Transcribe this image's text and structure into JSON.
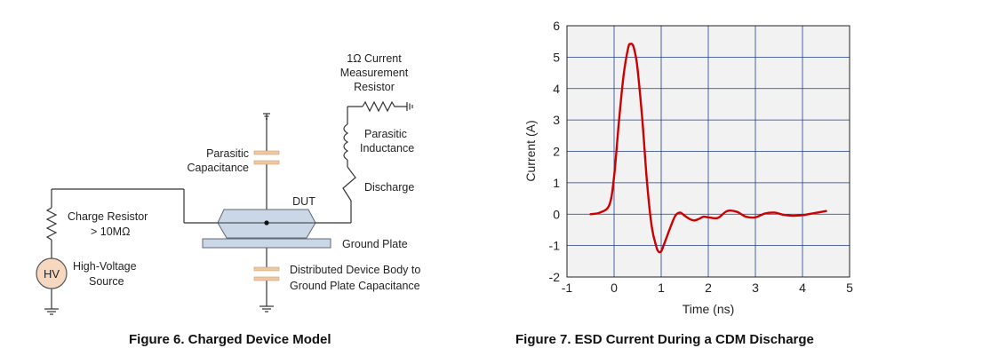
{
  "figure6": {
    "caption": "Figure 6. Charged Device Model",
    "labels": {
      "resistor_1": "1Ω Current",
      "resistor_2": "Measurement",
      "resistor_3": "Resistor",
      "inductance_1": "Parasitic",
      "inductance_2": "Inductance",
      "capacitance_1": "Parasitic",
      "capacitance_2": "Capacitance",
      "dut": "DUT",
      "discharge": "Discharge",
      "charge_resistor_1": "Charge Resistor",
      "charge_resistor_2": "> 10MΩ",
      "hv": "HV",
      "hv_source_1": "High-Voltage",
      "hv_source_2": "Source",
      "ground_plate": "Ground Plate",
      "distributed_1": "Distributed Device Body to",
      "distributed_2": "Ground Plate Capacitance"
    },
    "colors": {
      "capacitor_fill": "#f0c8a0",
      "dut_fill": "#c9d7e6",
      "ground_plate_fill": "#c9d7e6",
      "hv_fill": "#f6d8c0"
    }
  },
  "figure7": {
    "caption": "Figure 7. ESD Current During a CDM Discharge"
  },
  "chart_data": {
    "type": "line",
    "xlabel": "Time (ns)",
    "ylabel": "Current (A)",
    "xlim": [
      -1,
      5
    ],
    "ylim": [
      -2,
      6
    ],
    "xticks": [
      -1,
      0,
      1,
      2,
      3,
      4,
      5
    ],
    "yticks": [
      -2,
      -1,
      0,
      1,
      2,
      3,
      4,
      5,
      6
    ],
    "grid": true,
    "plot_background": "#f2f2f2",
    "series": [
      {
        "color": "#cc0000",
        "x": [
          -0.5,
          -0.3,
          -0.1,
          0.0,
          0.1,
          0.2,
          0.3,
          0.35,
          0.4,
          0.45,
          0.5,
          0.6,
          0.7,
          0.8,
          0.9,
          0.95,
          1.0,
          1.05,
          1.1,
          1.2,
          1.3,
          1.4,
          1.5,
          1.6,
          1.7,
          1.8,
          1.9,
          2.0,
          2.2,
          2.4,
          2.6,
          2.8,
          3.0,
          3.2,
          3.4,
          3.6,
          3.8,
          4.0,
          4.2,
          4.5
        ],
        "y": [
          0.0,
          0.05,
          0.3,
          1.2,
          2.9,
          4.4,
          5.3,
          5.42,
          5.38,
          5.1,
          4.6,
          3.0,
          1.0,
          -0.4,
          -1.05,
          -1.2,
          -1.18,
          -1.0,
          -0.8,
          -0.4,
          -0.05,
          0.05,
          -0.05,
          -0.15,
          -0.2,
          -0.15,
          -0.08,
          -0.1,
          -0.12,
          0.1,
          0.08,
          -0.08,
          -0.1,
          0.02,
          0.05,
          -0.02,
          -0.05,
          -0.03,
          0.02,
          0.1
        ]
      }
    ]
  }
}
